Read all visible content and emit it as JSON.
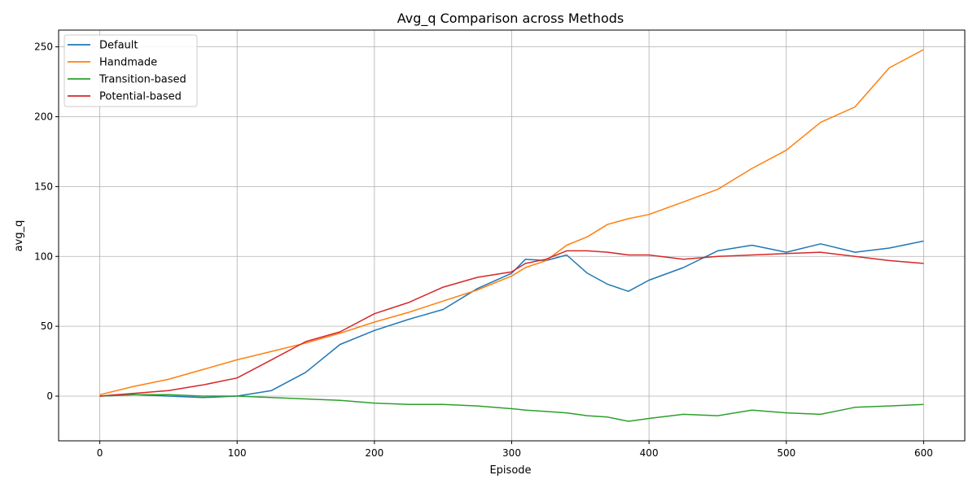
{
  "chart_data": {
    "type": "line",
    "title": "Avg_q Comparison across Methods",
    "xlabel": "Episode",
    "ylabel": "avg_q",
    "xlim": [
      -30,
      630
    ],
    "ylim": [
      -32,
      262
    ],
    "xticks": [
      0,
      100,
      200,
      300,
      400,
      500,
      600
    ],
    "yticks": [
      0,
      50,
      100,
      150,
      200,
      250
    ],
    "grid": true,
    "legend_position": "top-left",
    "x": [
      0,
      25,
      50,
      75,
      100,
      125,
      150,
      175,
      200,
      225,
      250,
      275,
      300,
      310,
      325,
      340,
      355,
      370,
      385,
      400,
      425,
      450,
      475,
      500,
      525,
      550,
      575,
      600
    ],
    "series": [
      {
        "name": "Default",
        "color": "#1f77b4",
        "values": [
          0,
          1,
          0,
          -1,
          0,
          4,
          17,
          37,
          47,
          55,
          62,
          77,
          88,
          98,
          97,
          101,
          88,
          80,
          75,
          83,
          92,
          104,
          108,
          103,
          109,
          103,
          106,
          111
        ]
      },
      {
        "name": "Handmade",
        "color": "#ff7f0e",
        "values": [
          1,
          7,
          12,
          19,
          26,
          32,
          38,
          45,
          53,
          60,
          68,
          76,
          86,
          92,
          97,
          108,
          114,
          123,
          127,
          130,
          139,
          148,
          163,
          176,
          196,
          207,
          235,
          248
        ]
      },
      {
        "name": "Transition-based",
        "color": "#2ca02c",
        "values": [
          0,
          1,
          1,
          0,
          0,
          -1,
          -2,
          -3,
          -5,
          -6,
          -6,
          -7,
          -9,
          -10,
          -11,
          -12,
          -14,
          -15,
          -18,
          -16,
          -13,
          -14,
          -10,
          -12,
          -13,
          -8,
          -7,
          -6
        ]
      },
      {
        "name": "Potential-based",
        "color": "#d62728",
        "values": [
          0,
          2,
          4,
          8,
          13,
          26,
          39,
          46,
          59,
          67,
          78,
          85,
          89,
          95,
          98,
          104,
          104,
          103,
          101,
          101,
          98,
          100,
          101,
          102,
          103,
          100,
          97,
          95
        ]
      }
    ]
  }
}
